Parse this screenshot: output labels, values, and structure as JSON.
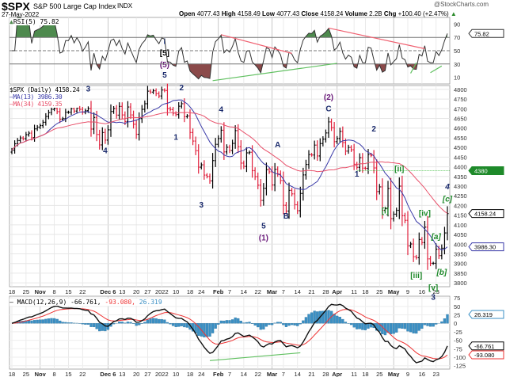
{
  "header": {
    "symbol": "$SPX",
    "name": "S&P 500 Large Cap Index",
    "exchange": "INDX",
    "date": "27-May-2022",
    "brand": "@StockCharts.com",
    "open_label": "Open",
    "open": "4077.43",
    "high_label": "High",
    "high": "4158.49",
    "low_label": "Low",
    "low": "4077.43",
    "close_label": "Close",
    "close": "4158.24",
    "volume_label": "Volume",
    "volume": "2.2B",
    "chg_label": "Chg",
    "chg": "+100.40 (+2.47%)"
  },
  "chart_data": {
    "type": "ohlc-bar",
    "colors": {
      "up": "#000000",
      "down": "#e0203c",
      "ma13": "#3a3aa8",
      "ma34": "#e8506a",
      "rsi_up": "#4e8a4e",
      "rsi_down": "#8b4a4a",
      "macd": "#111111",
      "signal": "#ee3333",
      "hist": "#3a8fc4",
      "trend_red": "#f06070",
      "trend_green": "#60c060",
      "support": "#1e8a2a"
    },
    "price": {
      "legend": "$SPX (Daily) 4158.24",
      "ma13_legend": "MA(13) 3986.30",
      "ma34_legend": "MA(34) 4159.35",
      "last": "4158.24",
      "ma13_last": "3986.30",
      "ylim": [
        3780,
        4820
      ],
      "yticks": [
        3800,
        3850,
        3900,
        3950,
        4000,
        4050,
        4100,
        4150,
        4200,
        4250,
        4300,
        4350,
        4400,
        4450,
        4500,
        4550,
        4600,
        4650,
        4700,
        4750,
        4800
      ],
      "support": {
        "value": 4380,
        "label": "4380",
        "from": "2022-04-12"
      }
    },
    "months": [
      {
        "m": "2021-10",
        "days": [
          18,
          19,
          20,
          21,
          22,
          25,
          26,
          27,
          28,
          29
        ],
        "close": [
          4486,
          4519,
          4536,
          4549,
          4545,
          4566,
          4574,
          4551,
          4596,
          4605
        ]
      },
      {
        "m": "2021-11",
        "days": [
          1,
          2,
          3,
          4,
          5,
          8,
          9,
          10,
          11,
          12,
          15,
          16,
          17,
          18,
          19,
          22,
          23,
          24,
          26,
          29,
          30
        ],
        "close": [
          4613,
          4630,
          4660,
          4680,
          4697,
          4701,
          4685,
          4646,
          4649,
          4682,
          4682,
          4700,
          4688,
          4704,
          4697,
          4682,
          4690,
          4701,
          4595,
          4655,
          4567
        ]
      },
      {
        "m": "2021-12",
        "days": [
          1,
          2,
          3,
          6,
          7,
          8,
          9,
          10,
          13,
          14,
          15,
          16,
          17,
          20,
          21,
          22,
          23,
          27,
          28,
          29,
          30,
          31
        ],
        "close": [
          4513,
          4577,
          4538,
          4591,
          4686,
          4701,
          4667,
          4712,
          4668,
          4634,
          4709,
          4668,
          4620,
          4568,
          4649,
          4697,
          4726,
          4791,
          4786,
          4793,
          4778,
          4766
        ]
      },
      {
        "m": "2022-01",
        "days": [
          3,
          4,
          5,
          6,
          7,
          10,
          11,
          12,
          13,
          14,
          18,
          19,
          20,
          21,
          24,
          25,
          26,
          27,
          28,
          31
        ],
        "close": [
          4797,
          4794,
          4701,
          4696,
          4677,
          4670,
          4713,
          4726,
          4659,
          4663,
          4577,
          4533,
          4483,
          4398,
          4410,
          4357,
          4350,
          4327,
          4432,
          4516
        ]
      },
      {
        "m": "2022-02",
        "days": [
          1,
          2,
          3,
          4,
          7,
          8,
          9,
          10,
          11,
          14,
          15,
          16,
          17,
          18,
          22,
          23,
          24,
          25,
          28
        ],
        "close": [
          4546,
          4589,
          4477,
          4501,
          4484,
          4521,
          4587,
          4504,
          4419,
          4402,
          4472,
          4475,
          4380,
          4349,
          4305,
          4226,
          4289,
          4385,
          4374
        ]
      },
      {
        "m": "2022-03",
        "days": [
          1,
          2,
          3,
          4,
          7,
          8,
          9,
          10,
          11,
          14,
          15,
          16,
          17,
          18,
          21,
          22,
          23,
          24,
          25,
          28,
          29,
          30,
          31
        ],
        "close": [
          4306,
          4387,
          4363,
          4329,
          4201,
          4171,
          4278,
          4260,
          4204,
          4173,
          4262,
          4358,
          4412,
          4463,
          4461,
          4512,
          4456,
          4520,
          4543,
          4575,
          4632,
          4602,
          4530
        ]
      },
      {
        "m": "2022-04",
        "days": [
          1,
          4,
          5,
          6,
          7,
          8,
          11,
          12,
          13,
          14,
          18,
          19,
          20,
          21,
          22,
          25,
          26,
          27,
          28,
          29
        ],
        "close": [
          4546,
          4583,
          4525,
          4481,
          4500,
          4488,
          4413,
          4397,
          4447,
          4393,
          4392,
          4463,
          4459,
          4394,
          4272,
          4296,
          4175,
          4183,
          4288,
          4132
        ]
      },
      {
        "m": "2022-05",
        "days": [
          2,
          3,
          4,
          5,
          6,
          9,
          10,
          11,
          12,
          13,
          16,
          17,
          18,
          19,
          20,
          23,
          24,
          25,
          26,
          27
        ],
        "close": [
          4155,
          4175,
          4300,
          4147,
          4123,
          3991,
          4001,
          3935,
          3930,
          4024,
          4008,
          4088,
          3924,
          3901,
          3901,
          3974,
          3941,
          3979,
          4058,
          4158
        ]
      }
    ],
    "xticks": [
      [
        "2021-10-18",
        "18"
      ],
      [
        "2021-10-25",
        "25"
      ],
      [
        "2021-11-01",
        "Nov"
      ],
      [
        "2021-11-08",
        "8"
      ],
      [
        "2021-11-15",
        "15"
      ],
      [
        "2021-11-22",
        "22"
      ],
      [
        "2021-12-06",
        "Dec 6"
      ],
      [
        "2021-12-13",
        "13"
      ],
      [
        "2021-12-20",
        "20"
      ],
      [
        "2021-12-27",
        "27"
      ],
      [
        "2022-01-03",
        "2022"
      ],
      [
        "2022-01-10",
        "10"
      ],
      [
        "2022-01-18",
        "18"
      ],
      [
        "2022-01-24",
        "24"
      ],
      [
        "2022-02-01",
        "Feb"
      ],
      [
        "2022-02-07",
        "7"
      ],
      [
        "2022-02-14",
        "14"
      ],
      [
        "2022-02-22",
        "22"
      ],
      [
        "2022-03-01",
        "Mar"
      ],
      [
        "2022-03-07",
        "7"
      ],
      [
        "2022-03-14",
        "14"
      ],
      [
        "2022-03-21",
        "21"
      ],
      [
        "2022-03-28",
        "28"
      ],
      [
        "2022-04-01",
        "Apr"
      ],
      [
        "2022-04-11",
        "11"
      ],
      [
        "2022-04-18",
        "18"
      ],
      [
        "2022-04-25",
        "25"
      ],
      [
        "2022-05-02",
        "May"
      ],
      [
        "2022-05-09",
        "9"
      ],
      [
        "2022-05-16",
        "16"
      ],
      [
        "2022-05-23",
        "23"
      ]
    ],
    "wave_labels": [
      {
        "t": "3",
        "d": "2021-11-24",
        "p": 4790,
        "c": "#1a2a6c"
      },
      {
        "t": "4",
        "d": "2021-12-03",
        "p": 4470,
        "c": "#1a2a6c"
      },
      {
        "t": "I",
        "d": "2022-01-04",
        "p": 5035,
        "c": "#1a3aa0"
      },
      {
        "t": "[5]",
        "d": "2022-01-04",
        "p": 4975,
        "c": "#000000"
      },
      {
        "t": "(5)",
        "d": "2022-01-04",
        "p": 4915,
        "c": "#6a1a7a"
      },
      {
        "t": "5",
        "d": "2022-01-04",
        "p": 4860,
        "c": "#1a2a6c"
      },
      {
        "t": "2",
        "d": "2022-01-12",
        "p": 4795,
        "c": "#1a2a6c"
      },
      {
        "t": "1",
        "d": "2022-01-10",
        "p": 4540,
        "c": "#1a2a6c"
      },
      {
        "t": "3",
        "d": "2022-01-24",
        "p": 4190,
        "c": "#1a2a6c"
      },
      {
        "t": "4",
        "d": "2022-02-02",
        "p": 4683,
        "c": "#1a2a6c"
      },
      {
        "t": "5",
        "d": "2022-02-24",
        "p": 4080,
        "c": "#1a2a6c"
      },
      {
        "t": "(1)",
        "d": "2022-02-24",
        "p": 4020,
        "c": "#6a1a7a"
      },
      {
        "t": "A",
        "d": "2022-03-03",
        "p": 4500,
        "c": "#1a2a6c"
      },
      {
        "t": "B",
        "d": "2022-03-08",
        "p": 4133,
        "c": "#1a2a6c"
      },
      {
        "t": "(2)",
        "d": "2022-03-29",
        "p": 4746,
        "c": "#6a1a7a"
      },
      {
        "t": "C",
        "d": "2022-03-29",
        "p": 4687,
        "c": "#1a2a6c"
      },
      {
        "t": "1",
        "d": "2022-04-12",
        "p": 4350,
        "c": "#1a2a6c"
      },
      {
        "t": "2",
        "d": "2022-04-21",
        "p": 4583,
        "c": "#1a2a6c"
      },
      {
        "t": "[i]",
        "d": "2022-04-27",
        "p": 4158,
        "c": "#1e8a2a"
      },
      {
        "t": "[ii]",
        "d": "2022-05-04",
        "p": 4375,
        "c": "#1e8a2a"
      },
      {
        "t": "[iii]",
        "d": "2022-05-12",
        "p": 3825,
        "c": "#1e8a2a"
      },
      {
        "t": "[iv]",
        "d": "2022-05-17",
        "p": 4146,
        "c": "#1e8a2a"
      },
      {
        "t": "[v]",
        "d": "2022-05-20",
        "p": 3762,
        "c": "#1e8a2a"
      },
      {
        "t": "3",
        "d": "2022-05-20",
        "p": 3712,
        "c": "#1a2a6c"
      },
      {
        "t": "[a]",
        "d": "2022-05-23",
        "p": 4025,
        "c": "#1e8a2a",
        "i": 1
      },
      {
        "t": "[b]",
        "d": "2022-05-25",
        "p": 3842,
        "c": "#1e8a2a",
        "i": 1
      },
      {
        "t": "[c]",
        "d": "2022-05-27",
        "p": 4221,
        "c": "#1e8a2a",
        "i": 1
      },
      {
        "t": "4",
        "d": "2022-05-27",
        "p": 4283,
        "c": "#1a2a6c",
        "i": 1
      }
    ],
    "rsi": {
      "legend": "RSI(5) 75.82",
      "last": "75.82",
      "ylim": [
        0,
        100
      ],
      "yticks": [
        10,
        30,
        50,
        70,
        90
      ],
      "overbought": 70,
      "oversold": 30,
      "trendlines": [
        {
          "c": "red",
          "a": [
            "2022-02-02",
            74
          ],
          "b": [
            "2022-03-10",
            46
          ]
        },
        {
          "c": "green",
          "a": [
            "2022-01-28",
            5
          ],
          "b": [
            "2022-04-01",
            31
          ]
        },
        {
          "c": "red",
          "a": [
            "2022-03-29",
            84
          ],
          "b": [
            "2022-05-17",
            53
          ]
        },
        {
          "c": "green",
          "a": [
            "2022-05-10",
            16
          ],
          "b": [
            "2022-05-12",
            32
          ]
        },
        {
          "c": "green",
          "a": [
            "2022-05-19",
            17
          ],
          "b": [
            "2022-05-25",
            27
          ]
        }
      ]
    },
    "macd": {
      "legend_main": "MACD(12,26,9) -66.761,",
      "legend_signal": " -93.080,",
      "legend_hist": " 26.319",
      "macd_last": "-66.761",
      "signal_last": "-93.080",
      "hist_last": "26.319",
      "ylim": [
        -135,
        80
      ],
      "yticks": [
        75,
        50,
        25,
        0,
        -25,
        -50,
        -75,
        -100,
        -125
      ],
      "trendlines": [
        {
          "c": "green",
          "a": [
            "2022-01-27",
            -110
          ],
          "b": [
            "2022-03-15",
            -87
          ]
        }
      ]
    }
  }
}
